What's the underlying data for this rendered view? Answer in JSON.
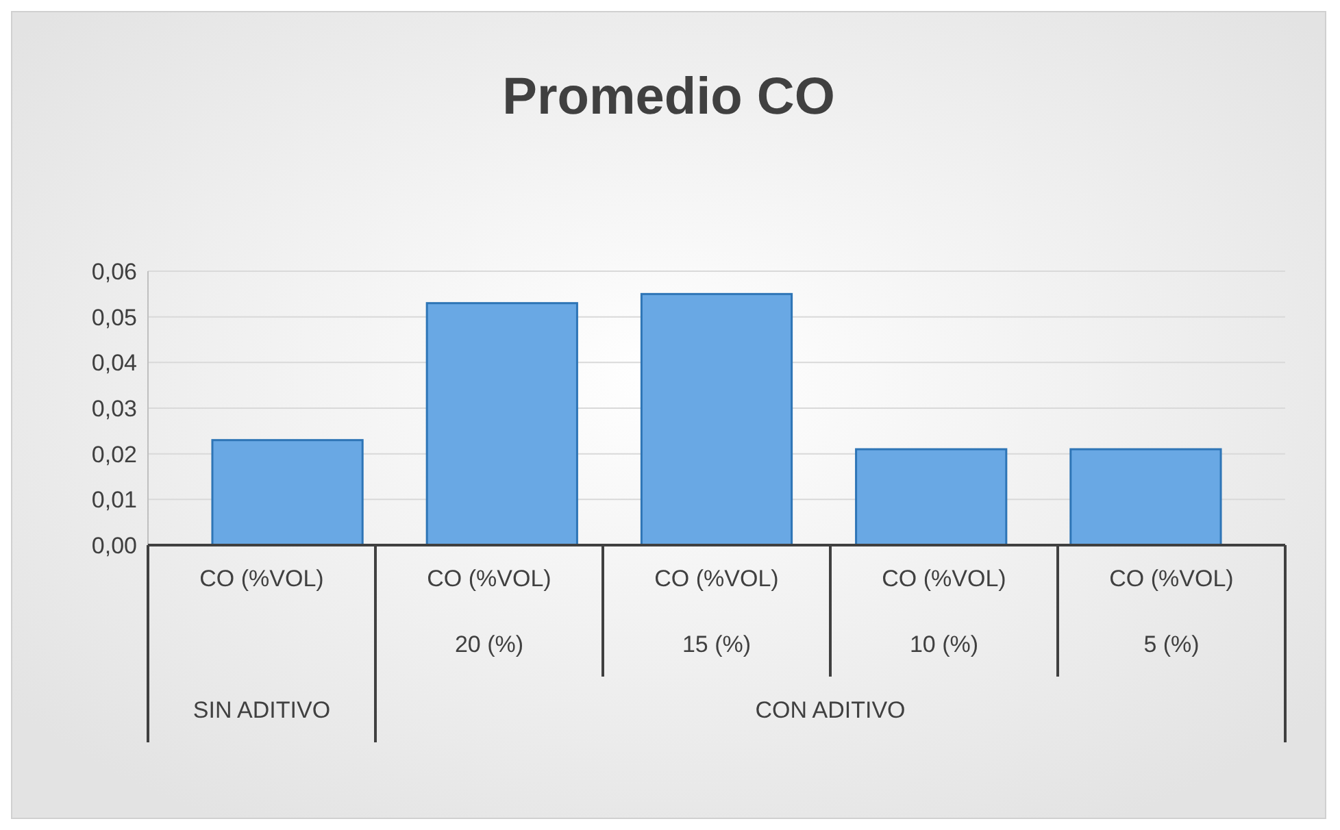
{
  "chart_data": {
    "type": "bar",
    "title": "Promedio CO",
    "categories": [
      "CO (%VOL)",
      "CO (%VOL)\n20 (%)",
      "CO (%VOL)\n15 (%)",
      "CO (%VOL)\n10 (%)",
      "CO (%VOL)\n5 (%)"
    ],
    "values": [
      0.023,
      0.053,
      0.055,
      0.021,
      0.021
    ],
    "color": "#69a8e4",
    "ylim": [
      0,
      0.06
    ],
    "yticks": [
      {
        "value": 0,
        "label": "0,00"
      },
      {
        "value": 0.01,
        "label": "0,01"
      },
      {
        "value": 0.02,
        "label": "0,02"
      },
      {
        "value": 0.03,
        "label": "0,03"
      },
      {
        "value": 0.04,
        "label": "0,04"
      },
      {
        "value": 0.05,
        "label": "0,05"
      },
      {
        "value": 0.06,
        "label": "0,06"
      }
    ],
    "grid": "y",
    "annotations": [
      "SIN ADITIVO",
      "CON ADITIVO"
    ]
  }
}
